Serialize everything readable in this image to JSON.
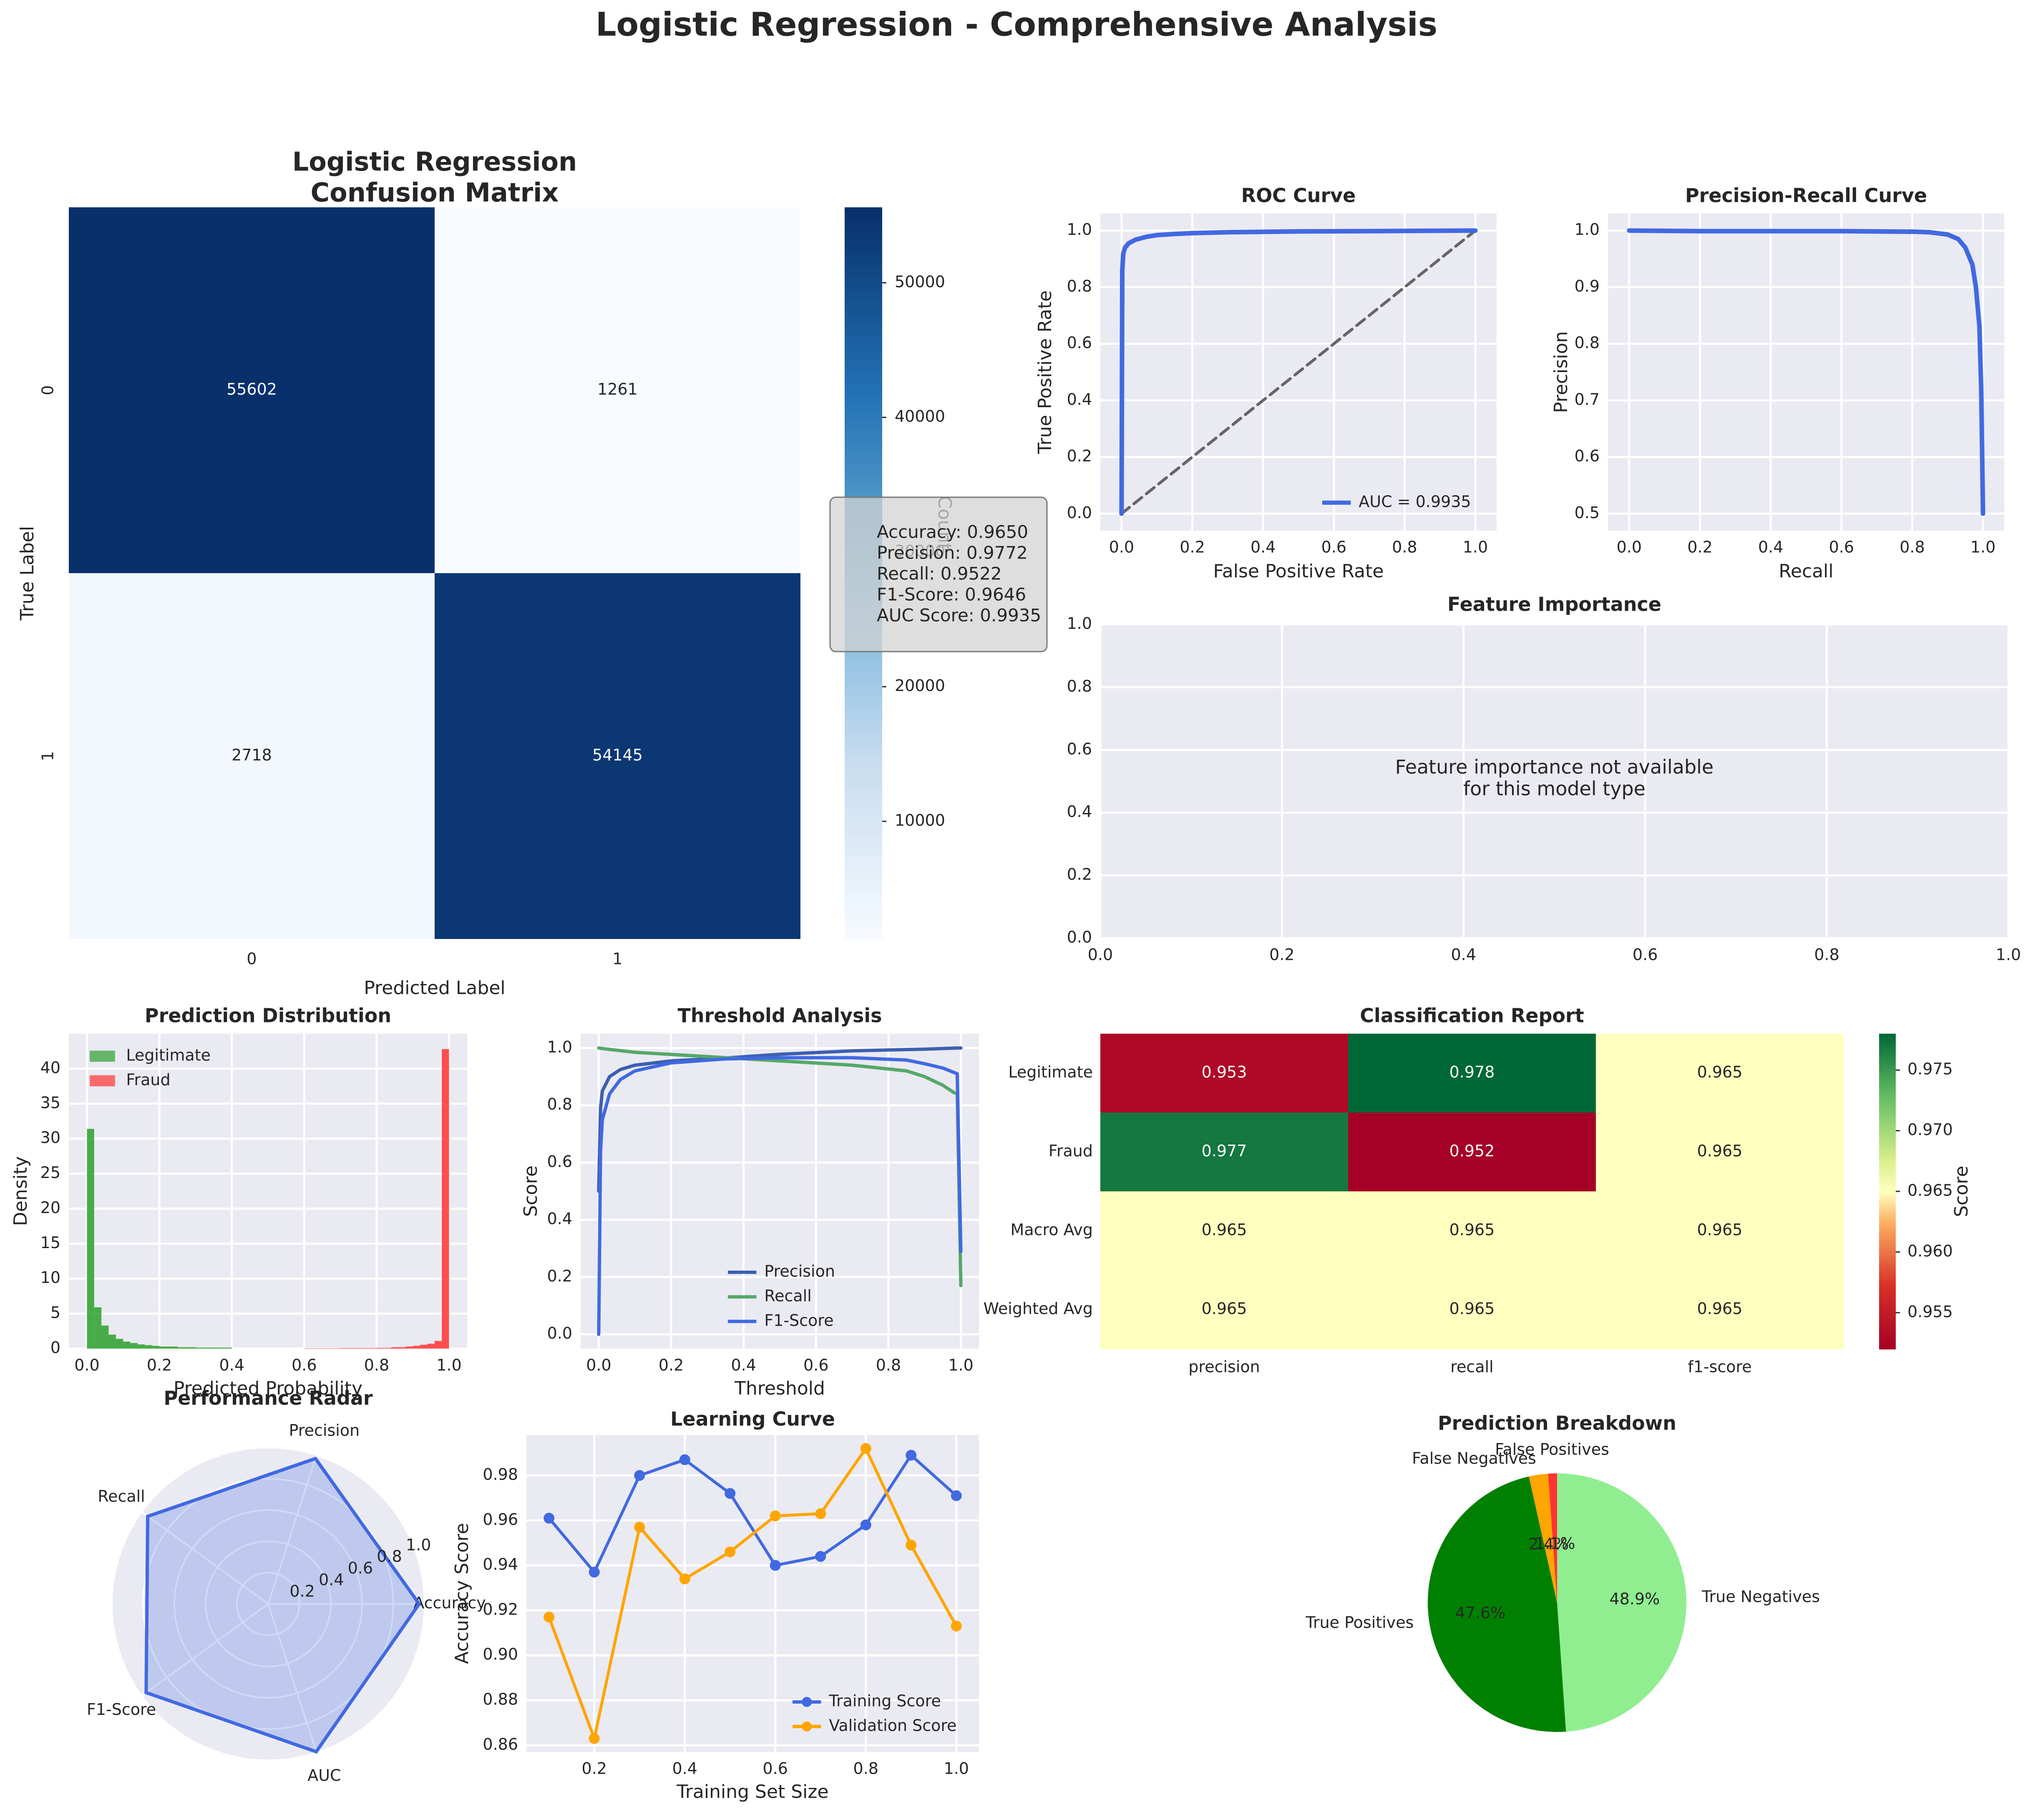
{
  "title": "Logistic Regression - Comprehensive Analysis",
  "colors": {
    "bg": "#EAEAF2",
    "grid": "#FFFFFF",
    "blue": "#4169E1",
    "green": "#2CA02C",
    "red": "#FF3333",
    "orange": "#FFA500",
    "dark_green": "#008000",
    "light_green": "#90EE90"
  },
  "chart_data": [
    {
      "id": "confusion_matrix",
      "type": "heatmap",
      "title": "Logistic Regression\nConfusion Matrix",
      "title_lines": [
        "Logistic Regression",
        "Confusion Matrix"
      ],
      "xlabel": "Predicted Label",
      "ylabel": "True Label",
      "x_ticks": [
        "0",
        "1"
      ],
      "y_ticks": [
        "0",
        "1"
      ],
      "values": [
        [
          55602,
          1261
        ],
        [
          2718,
          54145
        ]
      ],
      "colorbar": {
        "label": "Count",
        "min": 1261,
        "max": 55602,
        "ticks": [
          10000,
          20000,
          30000,
          40000,
          50000
        ],
        "tick_labels": [
          "10000",
          "20000",
          "30000",
          "40000",
          "50000"
        ]
      },
      "annotation": [
        "Accuracy: 0.9650",
        "Precision: 0.9772",
        "Recall: 0.9522",
        "F1-Score: 0.9646",
        "AUC Score: 0.9935"
      ]
    },
    {
      "id": "roc",
      "type": "line",
      "title": "ROC Curve",
      "xlabel": "False Positive Rate",
      "ylabel": "True Positive Rate",
      "xlim": [
        0,
        1
      ],
      "ylim": [
        0,
        1
      ],
      "ticks": [
        "0.0",
        "0.2",
        "0.4",
        "0.6",
        "0.8",
        "1.0"
      ],
      "series": [
        {
          "name": "AUC = 0.9935",
          "x": [
            0,
            0.002,
            0.005,
            0.01,
            0.02,
            0.04,
            0.07,
            0.1,
            0.15,
            0.2,
            0.3,
            0.5,
            0.7,
            1.0
          ],
          "y": [
            0,
            0.86,
            0.92,
            0.94,
            0.955,
            0.968,
            0.978,
            0.984,
            0.988,
            0.991,
            0.994,
            0.997,
            0.998,
            1.0
          ]
        }
      ],
      "diagonal": [
        [
          0,
          0
        ],
        [
          1,
          1
        ]
      ]
    },
    {
      "id": "pr",
      "type": "line",
      "title": "Precision-Recall Curve",
      "xlabel": "Recall",
      "ylabel": "Precision",
      "xlim": [
        0,
        1
      ],
      "ylim": [
        0.5,
        1
      ],
      "x_ticks": [
        "0.0",
        "0.2",
        "0.4",
        "0.6",
        "0.8",
        "1.0"
      ],
      "y_ticks": [
        "0.5",
        "0.6",
        "0.7",
        "0.8",
        "0.9",
        "1.0"
      ],
      "series": [
        {
          "name": "Precision-Recall",
          "x": [
            0,
            0.2,
            0.4,
            0.6,
            0.8,
            0.85,
            0.9,
            0.93,
            0.95,
            0.97,
            0.98,
            0.99,
            0.995,
            1.0
          ],
          "y": [
            1.0,
            0.999,
            0.999,
            0.999,
            0.998,
            0.997,
            0.993,
            0.985,
            0.97,
            0.94,
            0.9,
            0.83,
            0.72,
            0.5
          ]
        }
      ]
    },
    {
      "id": "feature_importance",
      "type": "scatter",
      "title": "Feature Importance",
      "xlim": [
        0,
        1
      ],
      "ylim": [
        0,
        1
      ],
      "ticks": [
        "0.0",
        "0.2",
        "0.4",
        "0.6",
        "0.8",
        "1.0"
      ],
      "message": [
        "Feature importance not available",
        "for this model type"
      ]
    },
    {
      "id": "prediction_distribution",
      "type": "bar",
      "title": "Prediction Distribution",
      "xlabel": "Predicted Probability",
      "ylabel": "Density",
      "xlim": [
        0,
        1
      ],
      "ylim": [
        0,
        44
      ],
      "x_ticks": [
        "0.0",
        "0.2",
        "0.4",
        "0.6",
        "0.8",
        "1.0"
      ],
      "y_ticks": [
        "0",
        "5",
        "10",
        "15",
        "20",
        "25",
        "30",
        "35",
        "40"
      ],
      "series": [
        {
          "name": "Legitimate",
          "bins": [
            0,
            0.02,
            0.04,
            0.06,
            0.08,
            0.1,
            0.12,
            0.14,
            0.16,
            0.18,
            0.2,
            0.25,
            0.3,
            0.4
          ],
          "values": [
            31.4,
            5.9,
            3.3,
            2.0,
            1.4,
            1.0,
            0.8,
            0.6,
            0.5,
            0.4,
            0.3,
            0.2,
            0.15
          ]
        },
        {
          "name": "Fraud",
          "bins": [
            0.6,
            0.7,
            0.8,
            0.84,
            0.88,
            0.9,
            0.92,
            0.94,
            0.96,
            0.98,
            1.0
          ],
          "values": [
            0.05,
            0.08,
            0.1,
            0.2,
            0.3,
            0.4,
            0.55,
            0.7,
            1.1,
            42.8
          ]
        }
      ]
    },
    {
      "id": "threshold",
      "type": "line",
      "title": "Threshold Analysis",
      "xlabel": "Threshold",
      "ylabel": "Score",
      "xlim": [
        0,
        1
      ],
      "ylim": [
        0,
        1
      ],
      "ticks": [
        "0.0",
        "0.2",
        "0.4",
        "0.6",
        "0.8",
        "1.0"
      ],
      "series": [
        {
          "name": "Precision",
          "x": [
            0,
            0.005,
            0.01,
            0.03,
            0.06,
            0.1,
            0.2,
            0.35,
            0.5,
            0.7,
            0.9,
            0.99,
            1.0
          ],
          "y": [
            0.5,
            0.79,
            0.85,
            0.9,
            0.925,
            0.94,
            0.955,
            0.965,
            0.978,
            0.99,
            0.996,
            1.0,
            1.0
          ]
        },
        {
          "name": "Recall",
          "x": [
            0,
            0.01,
            0.1,
            0.3,
            0.5,
            0.7,
            0.85,
            0.9,
            0.95,
            0.98,
            0.99,
            1.0
          ],
          "y": [
            1.0,
            0.998,
            0.985,
            0.97,
            0.955,
            0.94,
            0.92,
            0.9,
            0.87,
            0.845,
            0.84,
            0.17
          ]
        },
        {
          "name": "F1-Score",
          "x": [
            0,
            0.005,
            0.01,
            0.03,
            0.06,
            0.1,
            0.2,
            0.35,
            0.5,
            0.7,
            0.85,
            0.9,
            0.95,
            0.99,
            1.0
          ],
          "y": [
            0.0,
            0.64,
            0.75,
            0.84,
            0.89,
            0.92,
            0.948,
            0.962,
            0.966,
            0.966,
            0.958,
            0.945,
            0.93,
            0.91,
            0.29
          ]
        }
      ]
    },
    {
      "id": "classification_report",
      "type": "heatmap",
      "title": "Classification Report",
      "x_ticks": [
        "precision",
        "recall",
        "f1-score"
      ],
      "y_ticks": [
        "Legitimate",
        "Fraud",
        "Macro Avg",
        "Weighted Avg"
      ],
      "values": [
        [
          0.953,
          0.978,
          0.965
        ],
        [
          0.977,
          0.952,
          0.965
        ],
        [
          0.965,
          0.965,
          0.965
        ],
        [
          0.965,
          0.965,
          0.965
        ]
      ],
      "colorbar": {
        "label": "Score",
        "min": 0.952,
        "max": 0.978,
        "ticks": [
          0.955,
          0.96,
          0.965,
          0.97,
          0.975
        ],
        "tick_labels": [
          "0.955",
          "0.960",
          "0.965",
          "0.970",
          "0.975"
        ]
      }
    },
    {
      "id": "radar",
      "type": "line",
      "title": "Performance Radar",
      "categories": [
        "Accuracy",
        "Precision",
        "Recall",
        "F1-Score",
        "AUC"
      ],
      "values": [
        0.965,
        0.9772,
        0.9522,
        0.9646,
        0.9935
      ],
      "r_ticks": [
        "0.2",
        "0.4",
        "0.6",
        "0.8",
        "1.0"
      ]
    },
    {
      "id": "learning_curve",
      "type": "line",
      "title": "Learning Curve",
      "xlabel": "Training Set Size",
      "ylabel": "Accuracy Score",
      "x_ticks": [
        "0.2",
        "0.4",
        "0.6",
        "0.8",
        "1.0"
      ],
      "y_ticks": [
        "0.86",
        "0.88",
        "0.90",
        "0.92",
        "0.94",
        "0.96",
        "0.98"
      ],
      "xlim": [
        0.05,
        1.05
      ],
      "ylim": [
        0.857,
        0.998
      ],
      "x": [
        0.1,
        0.2,
        0.3,
        0.4,
        0.5,
        0.6,
        0.7,
        0.8,
        0.9,
        1.0
      ],
      "series": [
        {
          "name": "Training Score",
          "values": [
            0.961,
            0.937,
            0.98,
            0.987,
            0.972,
            0.94,
            0.944,
            0.958,
            0.989,
            0.971
          ]
        },
        {
          "name": "Validation Score",
          "values": [
            0.917,
            0.863,
            0.957,
            0.934,
            0.946,
            0.962,
            0.963,
            0.992,
            0.949,
            0.913
          ]
        }
      ]
    },
    {
      "id": "prediction_breakdown",
      "type": "pie",
      "title": "Prediction Breakdown",
      "slices": [
        {
          "name": "True Negatives",
          "value": 48.9,
          "pct": "48.9%"
        },
        {
          "name": "True Positives",
          "value": 47.6,
          "pct": "47.6%"
        },
        {
          "name": "False Negatives",
          "value": 2.4,
          "pct": "2.4%"
        },
        {
          "name": "False Positives",
          "value": 1.1,
          "pct": "1.1%"
        }
      ]
    }
  ]
}
